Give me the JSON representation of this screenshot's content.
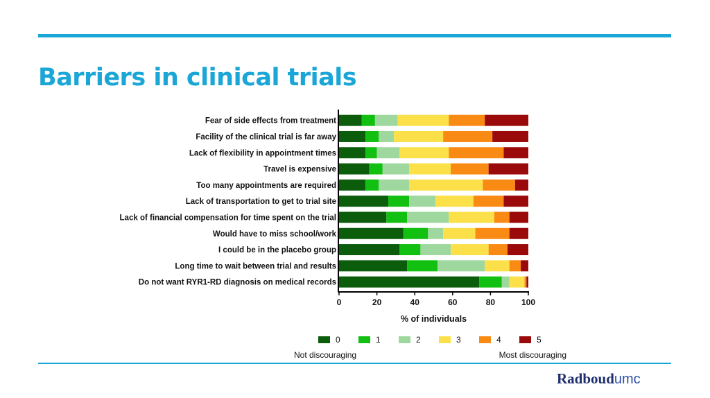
{
  "slide": {
    "title": "Barriers in clinical trials",
    "logo_left": "Radboud",
    "logo_right": "umc",
    "accent_color": "#1aa6d6"
  },
  "chart_data": {
    "type": "bar",
    "orientation": "horizontal",
    "stacked": true,
    "xlabel": "% of individuals",
    "xlim": [
      0,
      100
    ],
    "xticks": [
      0,
      20,
      40,
      60,
      80,
      100
    ],
    "categories": [
      "Fear of side effects from treatment",
      "Facility of the clinical trial is far away",
      "Lack of flexibility in appointment times",
      "Travel is expensive",
      "Too many appointments are required",
      "Lack of transportation to get to trial site",
      "Lack of financial compensation for time spent on the trial",
      "Would have to miss school/work",
      "I could be in the placebo group",
      "Long time to wait between trial and results",
      "Do not want RYR1-RD diagnosis on medical records"
    ],
    "series": [
      {
        "name": "0",
        "color": "#0b5c0b",
        "values": [
          12,
          14,
          14,
          16,
          14,
          26,
          25,
          34,
          32,
          36,
          74
        ]
      },
      {
        "name": "1",
        "color": "#11c011",
        "values": [
          7,
          7,
          6,
          7,
          7,
          11,
          11,
          13,
          11,
          16,
          12
        ]
      },
      {
        "name": "2",
        "color": "#9fd89f",
        "values": [
          12,
          8,
          12,
          14,
          16,
          14,
          22,
          8,
          16,
          25,
          4
        ]
      },
      {
        "name": "3",
        "color": "#fce04a",
        "values": [
          27,
          26,
          26,
          22,
          39,
          20,
          24,
          17,
          20,
          13,
          8
        ]
      },
      {
        "name": "4",
        "color": "#f98a14",
        "values": [
          19,
          26,
          29,
          20,
          17,
          16,
          8,
          18,
          10,
          6,
          1
        ]
      },
      {
        "name": "5",
        "color": "#9b0a0a",
        "values": [
          23,
          19,
          13,
          21,
          7,
          13,
          10,
          10,
          11,
          4,
          1
        ]
      }
    ],
    "legend": {
      "position": "bottom",
      "left_note": "Not discouraging",
      "right_note": "Most discouraging"
    }
  }
}
